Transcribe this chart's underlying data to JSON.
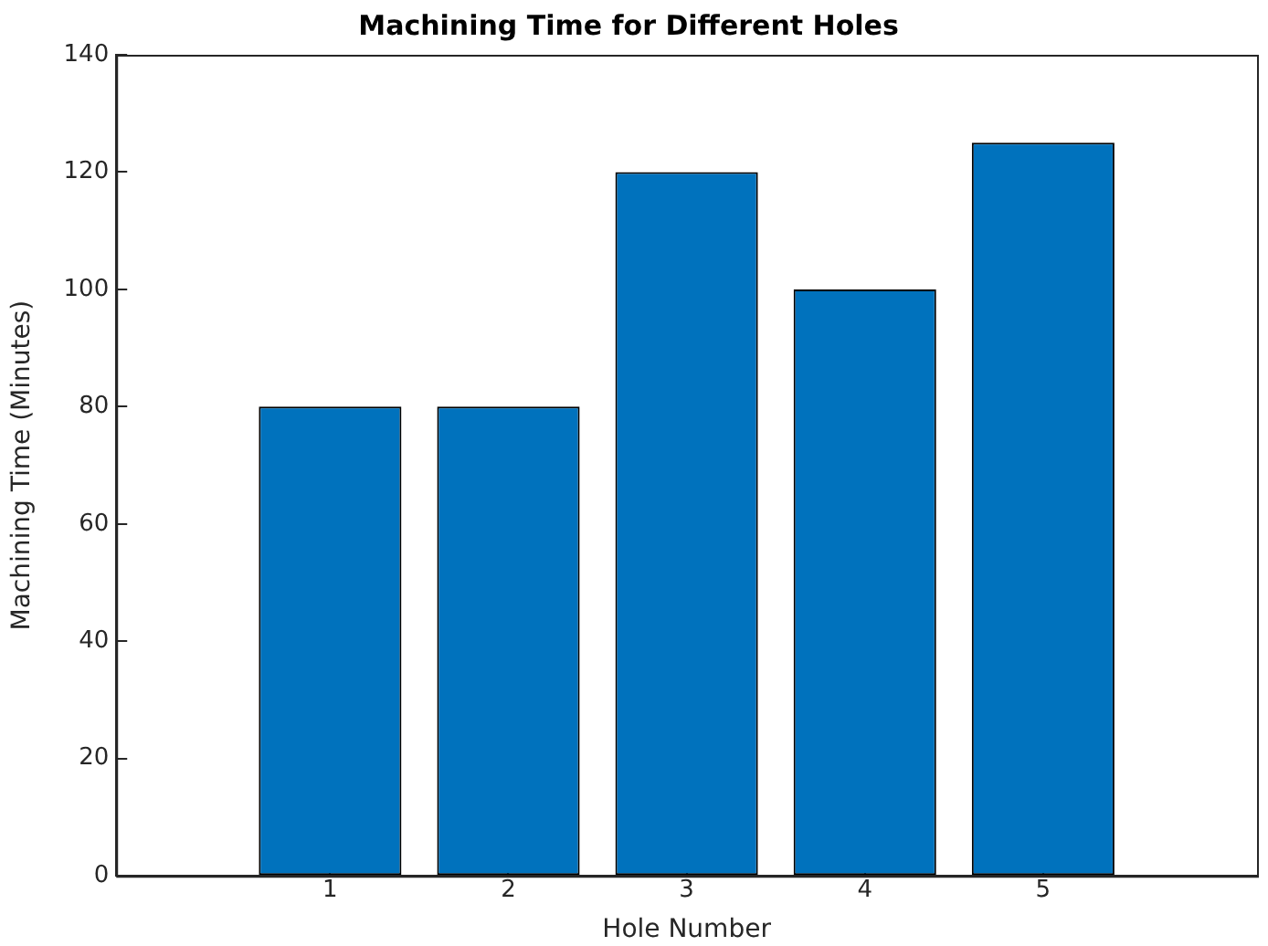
{
  "chart_data": {
    "type": "bar",
    "title": "Machining Time for Different Holes",
    "xlabel": "Hole Number",
    "ylabel": "Machining Time (Minutes)",
    "x": [
      1,
      2,
      3,
      4,
      5
    ],
    "xlim": [
      -0.2,
      6.2
    ],
    "xticks": [
      1,
      2,
      3,
      4,
      5
    ],
    "values": [
      80,
      80,
      120,
      100,
      125
    ],
    "color": "#0072bd",
    "ylim": [
      0,
      140
    ],
    "yticks": [
      0,
      20,
      40,
      60,
      80,
      100,
      120,
      140
    ],
    "grid": false,
    "legend": false
  }
}
